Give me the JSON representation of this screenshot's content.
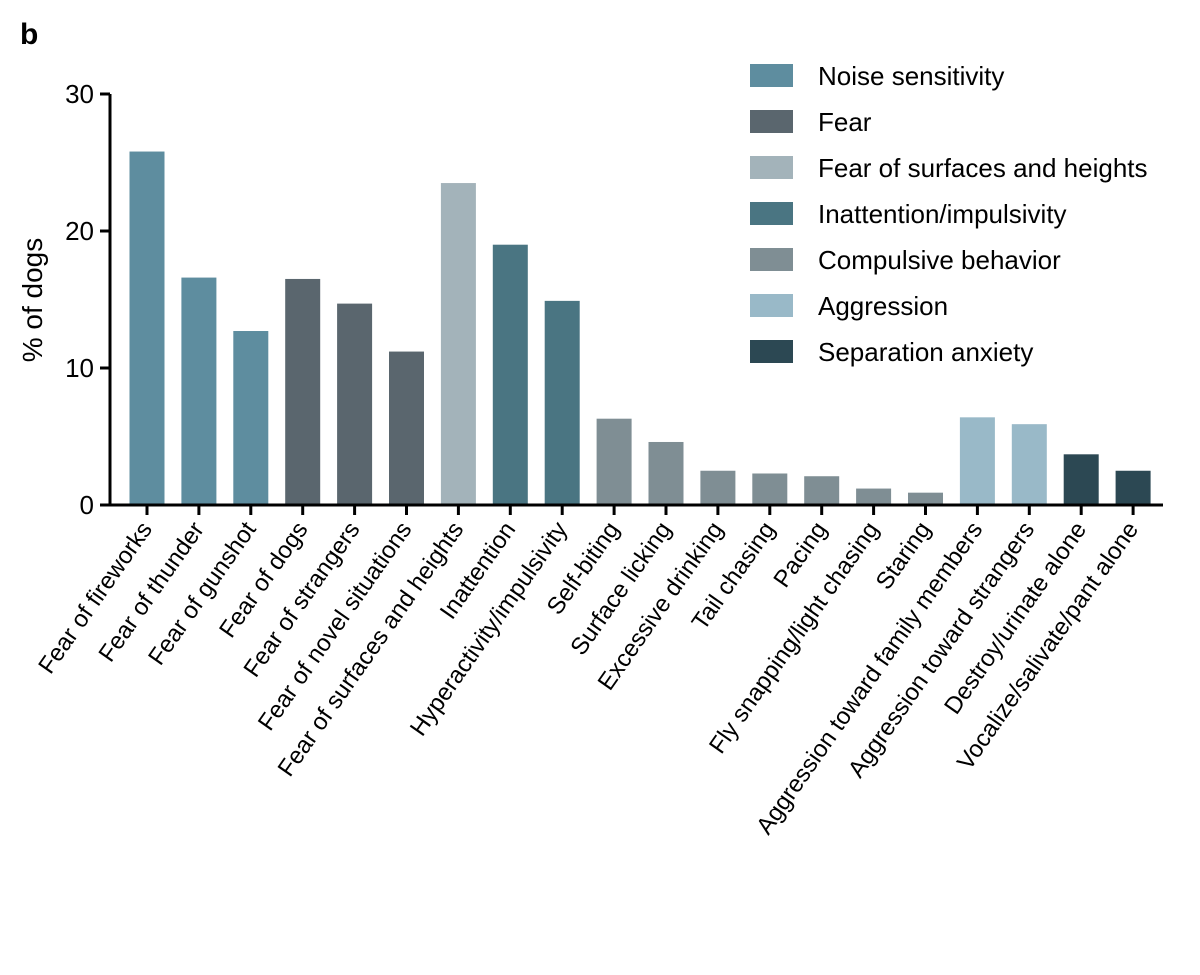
{
  "panel_label": "b",
  "chart_data": {
    "type": "bar",
    "ylabel": "% of dogs",
    "xlabel": "",
    "ylim": [
      0,
      30
    ],
    "yticks": [
      0,
      10,
      20,
      30
    ],
    "grid": false,
    "legend_position": "top-right",
    "groups": [
      {
        "name": "Noise sensitivity",
        "color": "#5e8d9f"
      },
      {
        "name": "Fear",
        "color": "#5a666e"
      },
      {
        "name": "Fear of surfaces and heights",
        "color": "#a3b3ba"
      },
      {
        "name": "Inattention/impulsivity",
        "color": "#4a7582"
      },
      {
        "name": "Compulsive behavior",
        "color": "#7f8e94"
      },
      {
        "name": "Aggression",
        "color": "#99b9c8"
      },
      {
        "name": "Separation anxiety",
        "color": "#2c4853"
      }
    ],
    "bars": [
      {
        "label": "Fear of fireworks",
        "value": 25.8,
        "group": 0
      },
      {
        "label": "Fear of thunder",
        "value": 16.6,
        "group": 0
      },
      {
        "label": "Fear of gunshot",
        "value": 12.7,
        "group": 0
      },
      {
        "label": "Fear of dogs",
        "value": 16.5,
        "group": 1
      },
      {
        "label": "Fear of strangers",
        "value": 14.7,
        "group": 1
      },
      {
        "label": "Fear of novel situations",
        "value": 11.2,
        "group": 1
      },
      {
        "label": "Fear of surfaces and heights",
        "value": 23.5,
        "group": 2
      },
      {
        "label": "Inattention",
        "value": 19.0,
        "group": 3
      },
      {
        "label": "Hyperactivity/impulsivity",
        "value": 14.9,
        "group": 3
      },
      {
        "label": "Self-biting",
        "value": 6.3,
        "group": 4
      },
      {
        "label": "Surface licking",
        "value": 4.6,
        "group": 4
      },
      {
        "label": "Excessive drinking",
        "value": 2.5,
        "group": 4
      },
      {
        "label": "Tail chasing",
        "value": 2.3,
        "group": 4
      },
      {
        "label": "Pacing",
        "value": 2.1,
        "group": 4
      },
      {
        "label": "Fly snapping/light chasing",
        "value": 1.2,
        "group": 4
      },
      {
        "label": "Staring",
        "value": 0.9,
        "group": 4
      },
      {
        "label": "Aggression toward family members",
        "value": 6.4,
        "group": 5
      },
      {
        "label": "Aggression toward strangers",
        "value": 5.9,
        "group": 5
      },
      {
        "label": "Destroy/urinate alone",
        "value": 3.7,
        "group": 6
      },
      {
        "label": "Vocalize/salivate/pant alone",
        "value": 2.5,
        "group": 6
      }
    ]
  }
}
